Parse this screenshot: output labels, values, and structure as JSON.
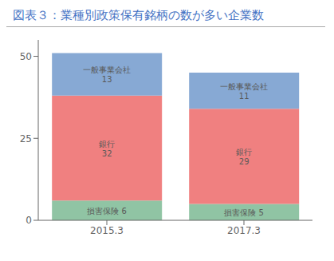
{
  "chart_data": {
    "type": "bar",
    "title": "図表３：業種別政策保有銘柄の数が多い企業数",
    "categories": [
      "2015.3",
      "2017.3"
    ],
    "stacked": true,
    "data_labels": true,
    "series": [
      {
        "name": "損害保険",
        "color": "#90c4a4",
        "values": [
          6,
          5
        ],
        "value_labels": [
          "損害保険 6",
          "損害保険 5"
        ]
      },
      {
        "name": "銀行",
        "color": "#f08080",
        "values": [
          32,
          29
        ],
        "value_labels": [
          "銀行\n32",
          "銀行\n29"
        ]
      },
      {
        "name": "一般事業会社",
        "color": "#87a9d4",
        "values": [
          13,
          11
        ],
        "value_labels": [
          "一般事業会社\n13",
          "一般事業会社\n11"
        ]
      }
    ],
    "ylim": [
      0,
      55
    ],
    "yticks": [
      0,
      25,
      50
    ]
  }
}
